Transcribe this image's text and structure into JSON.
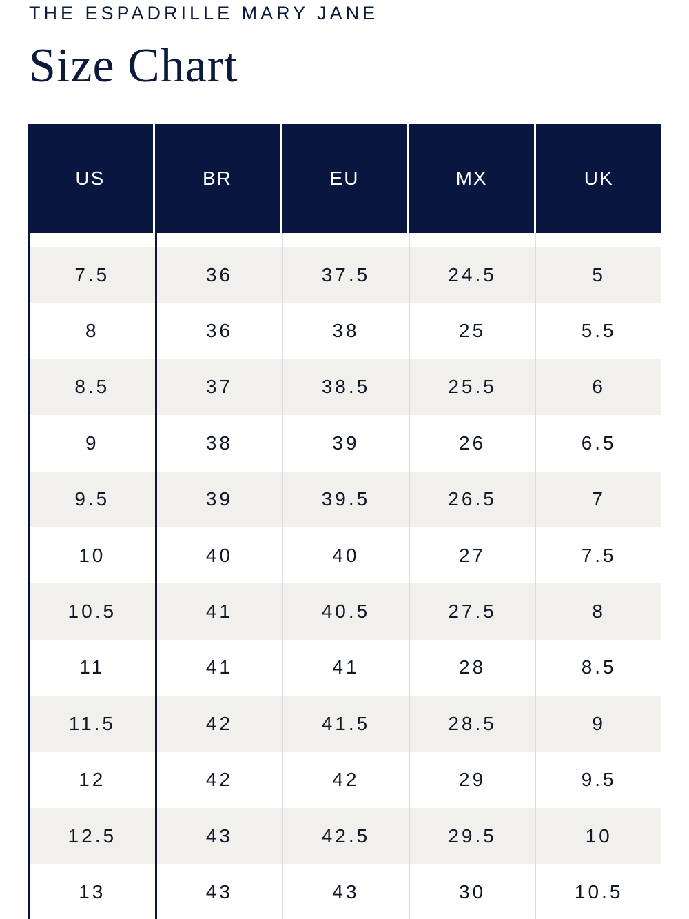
{
  "eyebrow": "THE ESPADRILLE MARY JANE",
  "title": "Size Chart",
  "colors": {
    "header_background": "#081640",
    "header_text": "#ffffff",
    "row_shade": "#f1f0ed",
    "text": "#0c1a3c"
  },
  "table": {
    "headers": [
      "US",
      "BR",
      "EU",
      "MX",
      "UK"
    ],
    "rows": [
      [
        "7.5",
        "36",
        "37.5",
        "24.5",
        "5"
      ],
      [
        "8",
        "36",
        "38",
        "25",
        "5.5"
      ],
      [
        "8.5",
        "37",
        "38.5",
        "25.5",
        "6"
      ],
      [
        "9",
        "38",
        "39",
        "26",
        "6.5"
      ],
      [
        "9.5",
        "39",
        "39.5",
        "26.5",
        "7"
      ],
      [
        "10",
        "40",
        "40",
        "27",
        "7.5"
      ],
      [
        "10.5",
        "41",
        "40.5",
        "27.5",
        "8"
      ],
      [
        "11",
        "41",
        "41",
        "28",
        "8.5"
      ],
      [
        "11.5",
        "42",
        "41.5",
        "28.5",
        "9"
      ],
      [
        "12",
        "42",
        "42",
        "29",
        "9.5"
      ],
      [
        "12.5",
        "43",
        "42.5",
        "29.5",
        "10"
      ],
      [
        "13",
        "43",
        "43",
        "30",
        "10.5"
      ]
    ]
  }
}
